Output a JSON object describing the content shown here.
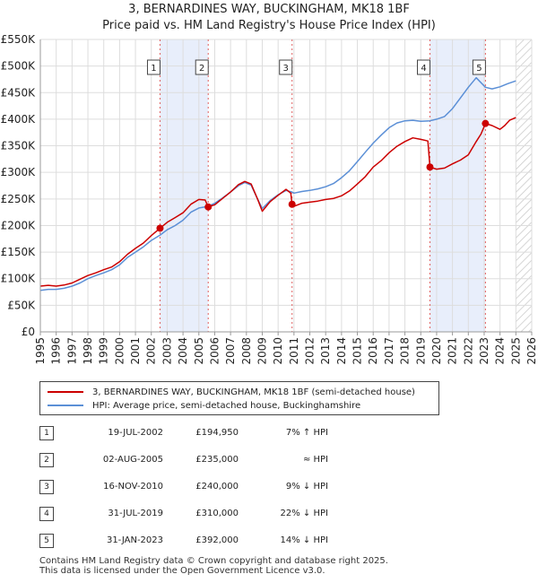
{
  "title_line1": "3, BERNARDINES WAY, BUCKINGHAM, MK18 1BF",
  "title_line2": "Price paid vs. HM Land Registry's House Price Index (HPI)",
  "chart_data": {
    "type": "line",
    "title": "3, BERNARDINES WAY, BUCKINGHAM, MK18 1BF — Price paid vs. HM Land Registry's House Price Index (HPI)",
    "xlim": [
      1995,
      2026
    ],
    "ylim": [
      0,
      550000
    ],
    "x_ticks": [
      "1995",
      "1996",
      "1997",
      "1998",
      "1999",
      "2000",
      "2001",
      "2002",
      "2003",
      "2004",
      "2005",
      "2006",
      "2007",
      "2008",
      "2009",
      "2010",
      "2011",
      "2012",
      "2013",
      "2014",
      "2015",
      "2016",
      "2017",
      "2018",
      "2019",
      "2020",
      "2021",
      "2022",
      "2023",
      "2024",
      "2025",
      "2026"
    ],
    "y_ticks": [
      {
        "value": 0,
        "label": "£0"
      },
      {
        "value": 50000,
        "label": "£50K"
      },
      {
        "value": 100000,
        "label": "£100K"
      },
      {
        "value": 150000,
        "label": "£150K"
      },
      {
        "value": 200000,
        "label": "£200K"
      },
      {
        "value": 250000,
        "label": "£250K"
      },
      {
        "value": 300000,
        "label": "£300K"
      },
      {
        "value": 350000,
        "label": "£350K"
      },
      {
        "value": 400000,
        "label": "£400K"
      },
      {
        "value": 450000,
        "label": "£450K"
      },
      {
        "value": 500000,
        "label": "£500K"
      },
      {
        "value": 550000,
        "label": "£550K"
      }
    ],
    "future_hatch_from": 2025.0,
    "series": [
      {
        "name": "3, BERNARDINES WAY, BUCKINGHAM, MK18 1BF (semi-detached house)",
        "color": "#cc0000",
        "points": [
          [
            1995.0,
            86000
          ],
          [
            1995.5,
            87500
          ],
          [
            1996.0,
            86000
          ],
          [
            1996.5,
            88000
          ],
          [
            1997.0,
            92000
          ],
          [
            1997.5,
            99000
          ],
          [
            1998.0,
            106000
          ],
          [
            1998.5,
            111000
          ],
          [
            1999.0,
            117000
          ],
          [
            1999.5,
            122000
          ],
          [
            2000.0,
            132000
          ],
          [
            2000.5,
            146000
          ],
          [
            2001.0,
            157000
          ],
          [
            2001.5,
            167000
          ],
          [
            2002.0,
            181000
          ],
          [
            2002.55,
            194950
          ],
          [
            2003.0,
            206000
          ],
          [
            2003.5,
            215000
          ],
          [
            2004.0,
            224000
          ],
          [
            2004.5,
            240000
          ],
          [
            2005.0,
            249000
          ],
          [
            2005.4,
            248000
          ],
          [
            2005.59,
            235000
          ],
          [
            2006.0,
            239000
          ],
          [
            2006.5,
            251000
          ],
          [
            2007.0,
            263000
          ],
          [
            2007.5,
            277000
          ],
          [
            2007.9,
            283000
          ],
          [
            2008.3,
            278000
          ],
          [
            2008.7,
            250000
          ],
          [
            2009.0,
            227000
          ],
          [
            2009.5,
            245000
          ],
          [
            2010.0,
            257000
          ],
          [
            2010.5,
            268000
          ],
          [
            2010.8,
            261000
          ],
          [
            2010.88,
            240000
          ],
          [
            2011.0,
            236000
          ],
          [
            2011.5,
            242000
          ],
          [
            2012.0,
            244000
          ],
          [
            2012.5,
            246000
          ],
          [
            2013.0,
            249000
          ],
          [
            2013.5,
            251000
          ],
          [
            2014.0,
            256000
          ],
          [
            2014.5,
            265000
          ],
          [
            2015.0,
            278000
          ],
          [
            2015.5,
            292000
          ],
          [
            2016.0,
            310000
          ],
          [
            2016.5,
            322000
          ],
          [
            2017.0,
            337000
          ],
          [
            2017.5,
            349000
          ],
          [
            2018.0,
            358000
          ],
          [
            2018.5,
            365000
          ],
          [
            2019.0,
            362000
          ],
          [
            2019.45,
            359000
          ],
          [
            2019.58,
            310000
          ],
          [
            2020.0,
            306000
          ],
          [
            2020.5,
            308000
          ],
          [
            2021.0,
            316000
          ],
          [
            2021.5,
            323000
          ],
          [
            2022.0,
            333000
          ],
          [
            2022.5,
            358000
          ],
          [
            2022.8,
            372000
          ],
          [
            2023.08,
            392000
          ],
          [
            2023.5,
            388000
          ],
          [
            2024.0,
            381000
          ],
          [
            2024.3,
            388000
          ],
          [
            2024.6,
            398000
          ],
          [
            2025.0,
            403000
          ]
        ]
      },
      {
        "name": "HPI: Average price, semi-detached house, Buckinghamshire",
        "color": "#5b8fd6",
        "points": [
          [
            1995.0,
            78000
          ],
          [
            1995.5,
            80000
          ],
          [
            1996.0,
            80000
          ],
          [
            1996.5,
            82000
          ],
          [
            1997.0,
            86000
          ],
          [
            1997.5,
            92000
          ],
          [
            1998.0,
            100000
          ],
          [
            1998.5,
            106000
          ],
          [
            1999.0,
            111000
          ],
          [
            1999.5,
            117000
          ],
          [
            2000.0,
            126000
          ],
          [
            2000.5,
            140000
          ],
          [
            2001.0,
            150000
          ],
          [
            2001.5,
            160000
          ],
          [
            2002.0,
            172000
          ],
          [
            2002.55,
            182000
          ],
          [
            2003.0,
            192000
          ],
          [
            2003.5,
            200000
          ],
          [
            2004.0,
            210000
          ],
          [
            2004.5,
            225000
          ],
          [
            2005.0,
            233000
          ],
          [
            2005.59,
            236000
          ],
          [
            2006.0,
            242000
          ],
          [
            2006.5,
            252000
          ],
          [
            2007.0,
            263000
          ],
          [
            2007.5,
            275000
          ],
          [
            2007.9,
            281000
          ],
          [
            2008.3,
            276000
          ],
          [
            2008.7,
            250000
          ],
          [
            2009.0,
            232000
          ],
          [
            2009.5,
            247000
          ],
          [
            2010.0,
            258000
          ],
          [
            2010.5,
            266000
          ],
          [
            2010.88,
            263000
          ],
          [
            2011.0,
            261000
          ],
          [
            2011.5,
            264000
          ],
          [
            2012.0,
            266000
          ],
          [
            2012.5,
            269000
          ],
          [
            2013.0,
            273000
          ],
          [
            2013.5,
            279000
          ],
          [
            2014.0,
            290000
          ],
          [
            2014.5,
            303000
          ],
          [
            2015.0,
            320000
          ],
          [
            2015.5,
            338000
          ],
          [
            2016.0,
            355000
          ],
          [
            2016.5,
            370000
          ],
          [
            2017.0,
            384000
          ],
          [
            2017.5,
            393000
          ],
          [
            2018.0,
            397000
          ],
          [
            2018.5,
            398000
          ],
          [
            2019.0,
            396000
          ],
          [
            2019.58,
            397000
          ],
          [
            2020.0,
            400000
          ],
          [
            2020.5,
            405000
          ],
          [
            2021.0,
            420000
          ],
          [
            2021.5,
            440000
          ],
          [
            2022.0,
            460000
          ],
          [
            2022.5,
            478000
          ],
          [
            2023.08,
            460000
          ],
          [
            2023.5,
            457000
          ],
          [
            2024.0,
            461000
          ],
          [
            2024.5,
            467000
          ],
          [
            2025.0,
            472000
          ]
        ]
      }
    ],
    "sales": [
      {
        "n": "1",
        "x": 2002.55,
        "y": 194950
      },
      {
        "n": "2",
        "x": 2005.59,
        "y": 235000
      },
      {
        "n": "3",
        "x": 2010.88,
        "y": 240000
      },
      {
        "n": "4",
        "x": 2019.58,
        "y": 310000
      },
      {
        "n": "5",
        "x": 2023.08,
        "y": 392000
      }
    ],
    "shaded_ranges": [
      [
        2002.55,
        2005.59
      ],
      [
        2019.58,
        2023.08
      ]
    ]
  },
  "legend": {
    "property_label": "3, BERNARDINES WAY, BUCKINGHAM, MK18 1BF (semi-detached house)",
    "hpi_label": "HPI: Average price, semi-detached house, Buckinghamshire"
  },
  "sales_table": [
    {
      "num": "1",
      "date": "19-JUL-2002",
      "price": "£194,950",
      "hpi": "7% ↑ HPI"
    },
    {
      "num": "2",
      "date": "02-AUG-2005",
      "price": "£235,000",
      "hpi": "≈ HPI"
    },
    {
      "num": "3",
      "date": "16-NOV-2010",
      "price": "£240,000",
      "hpi": "9% ↓ HPI"
    },
    {
      "num": "4",
      "date": "31-JUL-2019",
      "price": "£310,000",
      "hpi": "22% ↓ HPI"
    },
    {
      "num": "5",
      "date": "31-JAN-2023",
      "price": "£392,000",
      "hpi": "14% ↓ HPI"
    }
  ],
  "footer_line1": "Contains HM Land Registry data © Crown copyright and database right 2025.",
  "footer_line2": "This data is licensed under the Open Government Licence v3.0."
}
